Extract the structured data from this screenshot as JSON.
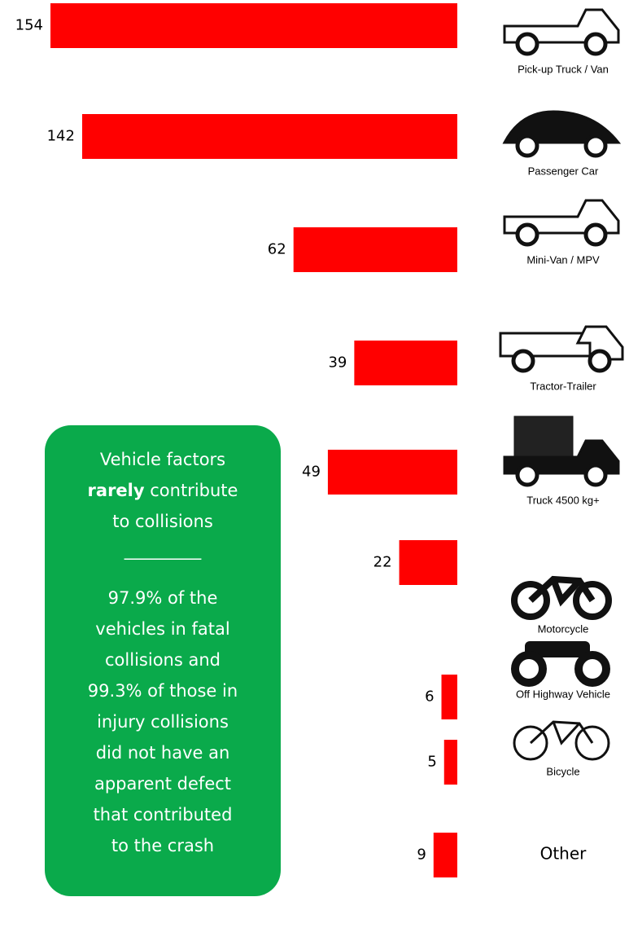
{
  "chart_data": {
    "type": "bar",
    "categories": [
      "Pick-up Truck / Van",
      "Passenger Car",
      "Mini-Van / MPV",
      "Tractor-Trailer",
      "Truck 4500 kg+",
      "Motorcycle",
      "Off Highway Vehicle",
      "Bicycle",
      "Other"
    ],
    "values": [
      154,
      142,
      62,
      39,
      49,
      22,
      6,
      5,
      9
    ],
    "color": "#ff0000",
    "callout": {
      "heading": [
        "Vehicle factors",
        "rarely",
        "contribute",
        "to collisions"
      ],
      "divider": "_________",
      "body": [
        "97.9% of the",
        "vehicles in fatal",
        "collisions and",
        "99.3% of those in",
        "injury collisions",
        "did not have an",
        "apparent defect",
        "that contributed",
        "to the crash"
      ]
    }
  }
}
